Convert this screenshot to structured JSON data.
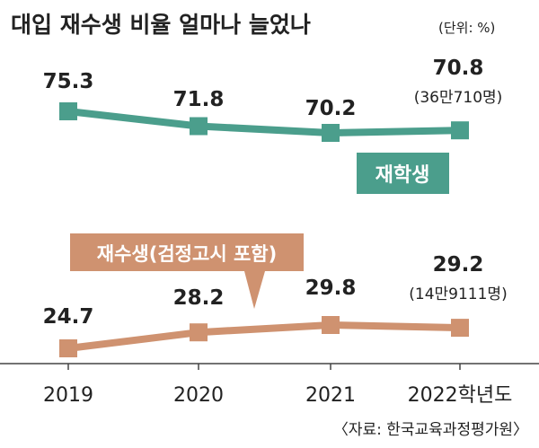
{
  "title": "대입 재수생 비율 얼마나 늘었나",
  "unit": "(단위: %)",
  "source": "〈자료: 한국교육과정평가원〉",
  "colors": {
    "background": "#ffffff",
    "jaehak": "#4b9e8c",
    "jaesu": "#cf9270",
    "axis": "#444444",
    "text": "#222222"
  },
  "chart_data": {
    "type": "line",
    "categories": [
      "2019",
      "2020",
      "2021",
      "2022학년도"
    ],
    "series": [
      {
        "name": "재학생",
        "values": [
          75.3,
          71.8,
          70.2,
          70.8
        ],
        "value_labels": [
          "75.3",
          "71.8",
          "70.2",
          "70.8"
        ],
        "last_note": "(36만710명)"
      },
      {
        "name": "재수생(검정고시 포함)",
        "values": [
          24.7,
          28.2,
          29.8,
          29.2
        ],
        "value_labels": [
          "24.7",
          "28.2",
          "29.8",
          "29.2"
        ],
        "last_note": "(14만9111명)"
      }
    ]
  }
}
